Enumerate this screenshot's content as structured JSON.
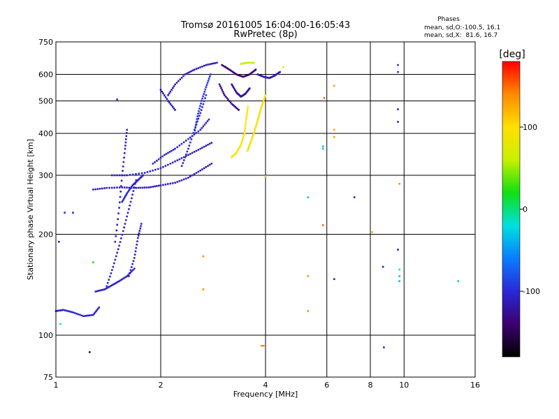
{
  "header": {
    "title": "Tromsø 20161005 16:04:00-16:05:43",
    "subtitle": "RwPretec (8p)"
  },
  "stats": {
    "heading": "Phases",
    "line1": "mean, sd,O:-100.5, 16.1",
    "line2": "mean, sd,X:  81.6, 16.7"
  },
  "colorbar": {
    "label": "[deg]",
    "ticks": [
      "100",
      "0",
      "-100"
    ],
    "tick_values": [
      100,
      0,
      -100
    ],
    "range": [
      -180,
      180
    ],
    "stops": [
      "#000000",
      "#3c006e",
      "#2a28d8",
      "#0a7cff",
      "#00e0e0",
      "#10e010",
      "#c8f000",
      "#ffe000",
      "#ff8a00",
      "#ff0000"
    ]
  },
  "chart_data": {
    "type": "scatter",
    "title": "Tromsø 20161005 16:04:00-16:05:43",
    "subtitle": "RwPretec (8p)",
    "xlabel": "Frequency [MHz]",
    "ylabel": "Stationary phase Virtual Height [km]",
    "xscale": "log",
    "yscale": "log",
    "xlim": [
      1,
      16
    ],
    "ylim": [
      75,
      750
    ],
    "xticks": [
      1,
      2,
      4,
      6,
      8,
      10,
      16
    ],
    "xtick_labels": [
      "1",
      "2",
      "4",
      "6",
      "8",
      "10",
      "16"
    ],
    "yticks": [
      75,
      100,
      200,
      300,
      400,
      500,
      600,
      750
    ],
    "ytick_labels": [
      "75",
      "100",
      "200",
      "300",
      "400",
      "500",
      "600",
      "750"
    ],
    "grid": true,
    "legend": "colorbar-right",
    "traces": [
      {
        "phase": -105,
        "x": [
          1.0,
          1.05,
          1.12,
          1.2,
          1.28,
          1.33
        ],
        "y": [
          118,
          119,
          117,
          114,
          115,
          121
        ]
      },
      {
        "phase": -105,
        "x": [
          1.3,
          1.38,
          1.45,
          1.52,
          1.6,
          1.68
        ],
        "y": [
          135,
          137,
          141,
          145,
          150,
          158
        ]
      },
      {
        "phase": -105,
        "x": [
          1.4,
          1.46,
          1.52,
          1.58,
          1.64,
          1.7
        ],
        "y": [
          140,
          160,
          185,
          215,
          250,
          290
        ]
      },
      {
        "phase": -110,
        "x": [
          1.48,
          1.52,
          1.55,
          1.58,
          1.6
        ],
        "y": [
          190,
          240,
          300,
          360,
          410
        ]
      },
      {
        "phase": -105,
        "x": [
          1.55,
          1.6,
          1.66,
          1.72,
          1.78
        ],
        "y": [
          250,
          265,
          280,
          290,
          300
        ]
      },
      {
        "phase": -105,
        "x": [
          1.62,
          1.68,
          1.72,
          1.76
        ],
        "y": [
          150,
          170,
          195,
          215
        ]
      },
      {
        "phase": -110,
        "x": [
          1.28,
          1.4,
          1.55,
          1.7,
          1.85,
          2.0,
          2.2,
          2.4,
          2.6,
          2.8
        ],
        "y": [
          272,
          275,
          276,
          275,
          276,
          280,
          285,
          295,
          310,
          325
        ]
      },
      {
        "phase": -108,
        "x": [
          1.45,
          1.6,
          1.8,
          2.0,
          2.2,
          2.4,
          2.6,
          2.8
        ],
        "y": [
          300,
          300,
          305,
          315,
          330,
          345,
          360,
          375
        ]
      },
      {
        "phase": -105,
        "x": [
          1.9,
          2.05,
          2.2,
          2.4,
          2.6,
          2.75
        ],
        "y": [
          325,
          345,
          360,
          385,
          410,
          440
        ]
      },
      {
        "phase": -100,
        "x": [
          2.3,
          2.4,
          2.5,
          2.6,
          2.7
        ],
        "y": [
          320,
          360,
          410,
          460,
          520
        ]
      },
      {
        "phase": -95,
        "x": [
          2.5,
          2.55,
          2.62,
          2.7,
          2.78
        ],
        "y": [
          400,
          450,
          500,
          550,
          600
        ]
      },
      {
        "phase": -110,
        "x": [
          2.1,
          2.2,
          2.35,
          2.5,
          2.7,
          2.9
        ],
        "y": [
          520,
          560,
          600,
          620,
          640,
          650
        ]
      },
      {
        "phase": -112,
        "x": [
          2.0,
          2.1,
          2.2
        ],
        "y": [
          540,
          500,
          470
        ]
      },
      {
        "phase": -140,
        "x": [
          3.0,
          3.15,
          3.3,
          3.45,
          3.6,
          3.75
        ],
        "y": [
          640,
          620,
          600,
          590,
          600,
          620
        ]
      },
      {
        "phase": -130,
        "x": [
          2.95,
          3.05,
          3.2,
          3.35
        ],
        "y": [
          560,
          520,
          490,
          470
        ]
      },
      {
        "phase": -125,
        "x": [
          3.2,
          3.3,
          3.4,
          3.5,
          3.6
        ],
        "y": [
          560,
          530,
          515,
          525,
          545
        ]
      },
      {
        "phase": 100,
        "x": [
          3.2,
          3.3,
          3.4,
          3.48,
          3.52,
          3.56
        ],
        "y": [
          340,
          350,
          370,
          400,
          440,
          480
        ]
      },
      {
        "phase": 95,
        "x": [
          3.55,
          3.62,
          3.7,
          3.78,
          3.85,
          3.92,
          4.0
        ],
        "y": [
          355,
          375,
          400,
          430,
          460,
          490,
          520
        ]
      },
      {
        "phase": 60,
        "x": [
          3.4,
          3.55,
          3.7
        ],
        "y": [
          645,
          650,
          650
        ]
      },
      {
        "phase": -115,
        "x": [
          3.8,
          3.95,
          4.1,
          4.25,
          4.4
        ],
        "y": [
          600,
          590,
          585,
          595,
          610
        ]
      }
    ],
    "points": [
      {
        "x": 1.02,
        "y": 190,
        "phase": -110
      },
      {
        "x": 1.06,
        "y": 232,
        "phase": -110
      },
      {
        "x": 1.12,
        "y": 232,
        "phase": -110
      },
      {
        "x": 1.03,
        "y": 108,
        "phase": -20
      },
      {
        "x": 1.25,
        "y": 89,
        "phase": -140
      },
      {
        "x": 1.28,
        "y": 165,
        "phase": 20
      },
      {
        "x": 1.5,
        "y": 505,
        "phase": -105
      },
      {
        "x": 2.65,
        "y": 172,
        "phase": 140
      },
      {
        "x": 2.65,
        "y": 137,
        "phase": 140
      },
      {
        "x": 4.0,
        "y": 298,
        "phase": 110
      },
      {
        "x": 3.9,
        "y": 93,
        "phase": 140
      },
      {
        "x": 3.95,
        "y": 93,
        "phase": 140
      },
      {
        "x": 4.5,
        "y": 630,
        "phase": 100
      },
      {
        "x": 5.3,
        "y": 258,
        "phase": -30
      },
      {
        "x": 5.3,
        "y": 150,
        "phase": 140
      },
      {
        "x": 5.3,
        "y": 118,
        "phase": 140
      },
      {
        "x": 5.9,
        "y": 510,
        "phase": 150
      },
      {
        "x": 5.85,
        "y": 213,
        "phase": 150
      },
      {
        "x": 5.85,
        "y": 366,
        "phase": -30
      },
      {
        "x": 5.85,
        "y": 360,
        "phase": -30
      },
      {
        "x": 6.3,
        "y": 555,
        "phase": 130
      },
      {
        "x": 6.3,
        "y": 410,
        "phase": 130
      },
      {
        "x": 6.3,
        "y": 390,
        "phase": 130
      },
      {
        "x": 6.3,
        "y": 147,
        "phase": -110
      },
      {
        "x": 7.2,
        "y": 258,
        "phase": -110
      },
      {
        "x": 8.1,
        "y": 203,
        "phase": 130
      },
      {
        "x": 8.7,
        "y": 160,
        "phase": -110
      },
      {
        "x": 8.75,
        "y": 92,
        "phase": -110
      },
      {
        "x": 9.6,
        "y": 640,
        "phase": -100
      },
      {
        "x": 9.6,
        "y": 610,
        "phase": -100
      },
      {
        "x": 9.6,
        "y": 472,
        "phase": -110
      },
      {
        "x": 9.6,
        "y": 433,
        "phase": -110
      },
      {
        "x": 9.7,
        "y": 283,
        "phase": 140
      },
      {
        "x": 9.6,
        "y": 180,
        "phase": -120
      },
      {
        "x": 9.7,
        "y": 157,
        "phase": -20
      },
      {
        "x": 9.7,
        "y": 150,
        "phase": -30
      },
      {
        "x": 9.7,
        "y": 145,
        "phase": -40
      },
      {
        "x": 14.3,
        "y": 145,
        "phase": -30
      }
    ]
  }
}
